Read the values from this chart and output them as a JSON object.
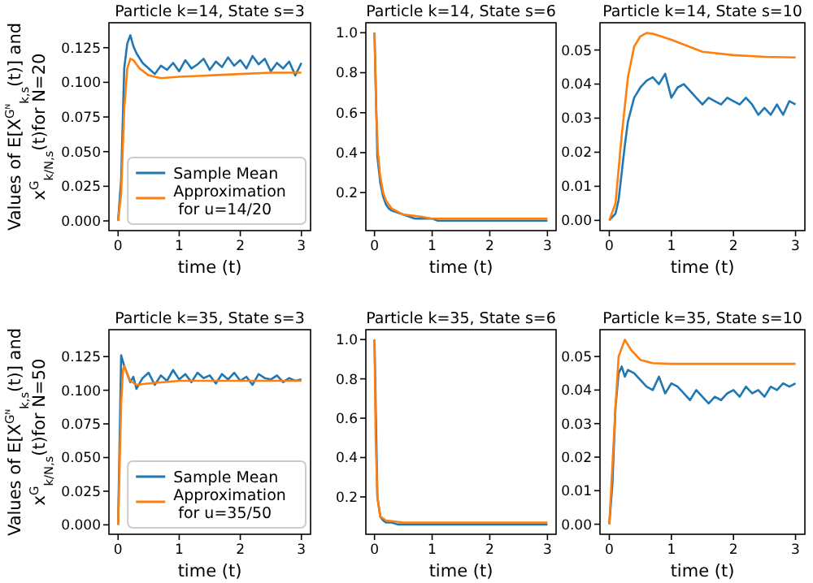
{
  "chart_data": [
    {
      "type": "line",
      "title": "Particle k=14, State s=3",
      "xlabel": "time (t)",
      "ylabel": "Values of E[X$^{Gᴺ}$$_{k,s}$(t)] and\nx$^{G}$$_{k/N,s}$(t)for N=20",
      "legend": "bottom right",
      "xlim": [
        -0.15,
        3.15
      ],
      "xticks": [
        0,
        1,
        2,
        3
      ],
      "ylim": [
        -0.007,
        0.143
      ],
      "yticks": [
        {
          "value": 0,
          "label": "0.000"
        },
        {
          "value": 0.025,
          "label": "0.025"
        },
        {
          "value": 0.05,
          "label": "0.050"
        },
        {
          "value": 0.075,
          "label": "0.075"
        },
        {
          "value": 0.1,
          "label": "0.100"
        },
        {
          "value": 0.125,
          "label": "0.125"
        }
      ],
      "x": [
        0,
        0.05,
        0.1,
        0.15,
        0.2,
        0.25,
        0.3,
        0.4,
        0.5,
        0.6,
        0.7,
        0.8,
        0.9,
        1,
        1.1,
        1.2,
        1.3,
        1.4,
        1.5,
        1.6,
        1.7,
        1.8,
        1.9,
        2,
        2.1,
        2.2,
        2.3,
        2.4,
        2.5,
        2.6,
        2.7,
        2.8,
        2.9,
        3
      ],
      "series": [
        {
          "name": "Sample Mean",
          "color": "#1f77b4",
          "values": [
            0,
            0.03,
            0.11,
            0.128,
            0.134,
            0.126,
            0.121,
            0.114,
            0.11,
            0.106,
            0.112,
            0.109,
            0.114,
            0.108,
            0.116,
            0.11,
            0.113,
            0.117,
            0.109,
            0.115,
            0.111,
            0.118,
            0.112,
            0.116,
            0.11,
            0.119,
            0.113,
            0.117,
            0.108,
            0.114,
            0.11,
            0.115,
            0.105,
            0.114
          ]
        },
        {
          "name": "Approximation\nfor u=14/20",
          "color": "#ff7f0e",
          "x": [
            0,
            0.05,
            0.1,
            0.15,
            0.2,
            0.25,
            0.35,
            0.5,
            0.7,
            1,
            1.5,
            2,
            2.5,
            3
          ],
          "values": [
            0,
            0.02,
            0.08,
            0.11,
            0.117,
            0.116,
            0.11,
            0.105,
            0.103,
            0.104,
            0.105,
            0.106,
            0.107,
            0.107
          ]
        }
      ]
    },
    {
      "type": "line",
      "title": "Particle k=14, State s=6",
      "xlabel": "time (t)",
      "xlim": [
        -0.15,
        3.15
      ],
      "xticks": [
        0,
        1,
        2,
        3
      ],
      "ylim": [
        0.01,
        1.05
      ],
      "yticks": [
        0.2,
        0.4,
        0.6,
        0.8,
        {
          "value": 1,
          "label": "1.0"
        }
      ],
      "x": [
        0,
        0.05,
        0.1,
        0.15,
        0.2,
        0.25,
        0.3,
        0.4,
        0.5,
        0.6,
        0.7,
        0.8,
        0.9,
        1,
        1.1,
        1.2,
        1.3,
        1.4,
        1.5,
        1.6,
        1.7,
        1.8,
        1.9,
        2,
        2.1,
        2.2,
        2.3,
        2.4,
        2.5,
        2.6,
        2.7,
        2.8,
        2.9,
        3
      ],
      "series": [
        {
          "color": "#1f77b4",
          "values": [
            1.0,
            0.38,
            0.25,
            0.18,
            0.14,
            0.12,
            0.11,
            0.1,
            0.09,
            0.08,
            0.07,
            0.07,
            0.07,
            0.07,
            0.06,
            0.06,
            0.06,
            0.06,
            0.06,
            0.06,
            0.06,
            0.06,
            0.06,
            0.06,
            0.06,
            0.06,
            0.06,
            0.06,
            0.06,
            0.06,
            0.06,
            0.06,
            0.06,
            0.06
          ]
        },
        {
          "color": "#ff7f0e",
          "x": [
            0,
            0.03,
            0.06,
            0.1,
            0.15,
            0.2,
            0.3,
            0.5,
            0.8,
            1,
            2,
            3
          ],
          "values": [
            1.0,
            0.6,
            0.4,
            0.28,
            0.2,
            0.16,
            0.12,
            0.09,
            0.08,
            0.07,
            0.07,
            0.07
          ]
        }
      ]
    },
    {
      "type": "line",
      "title": "Particle k=14, State s=10",
      "xlabel": "time (t)",
      "xlim": [
        -0.15,
        3.15
      ],
      "xticks": [
        0,
        1,
        2,
        3
      ],
      "ylim": [
        -0.003,
        0.058
      ],
      "yticks": [
        {
          "value": 0,
          "label": "0.00"
        },
        {
          "value": 0.01,
          "label": "0.01"
        },
        {
          "value": 0.02,
          "label": "0.02"
        },
        {
          "value": 0.03,
          "label": "0.03"
        },
        {
          "value": 0.04,
          "label": "0.04"
        },
        {
          "value": 0.05,
          "label": "0.05"
        }
      ],
      "x": [
        0,
        0.05,
        0.1,
        0.15,
        0.2,
        0.25,
        0.3,
        0.4,
        0.5,
        0.6,
        0.7,
        0.8,
        0.9,
        1,
        1.1,
        1.2,
        1.3,
        1.4,
        1.5,
        1.6,
        1.7,
        1.8,
        1.9,
        2,
        2.1,
        2.2,
        2.3,
        2.4,
        2.5,
        2.6,
        2.7,
        2.8,
        2.9,
        3
      ],
      "series": [
        {
          "color": "#1f77b4",
          "values": [
            0,
            0.001,
            0.002,
            0.006,
            0.014,
            0.022,
            0.029,
            0.036,
            0.039,
            0.041,
            0.042,
            0.04,
            0.043,
            0.036,
            0.039,
            0.04,
            0.038,
            0.036,
            0.034,
            0.036,
            0.035,
            0.034,
            0.036,
            0.035,
            0.034,
            0.036,
            0.034,
            0.031,
            0.033,
            0.031,
            0.034,
            0.031,
            0.035,
            0.034
          ]
        },
        {
          "color": "#ff7f0e",
          "x": [
            0,
            0.1,
            0.2,
            0.3,
            0.4,
            0.5,
            0.6,
            0.7,
            1,
            1.5,
            2,
            2.5,
            3
          ],
          "values": [
            0,
            0.005,
            0.025,
            0.042,
            0.051,
            0.054,
            0.055,
            0.0548,
            0.053,
            0.0495,
            0.0485,
            0.048,
            0.0478
          ]
        }
      ]
    },
    {
      "type": "line",
      "title": "Particle k=35, State s=3",
      "xlabel": "time (t)",
      "ylabel": "Values of E[X$^{Gᴺ}$$_{k,s}$(t)] and\nx$^{G}$$_{k/N,s}$(t)for N=50",
      "legend": "bottom right",
      "xlim": [
        -0.15,
        3.15
      ],
      "xticks": [
        0,
        1,
        2,
        3
      ],
      "ylim": [
        -0.007,
        0.145
      ],
      "yticks": [
        {
          "value": 0,
          "label": "0.000"
        },
        {
          "value": 0.025,
          "label": "0.025"
        },
        {
          "value": 0.05,
          "label": "0.050"
        },
        {
          "value": 0.075,
          "label": "0.075"
        },
        {
          "value": 0.1,
          "label": "0.100"
        },
        {
          "value": 0.125,
          "label": "0.125"
        }
      ],
      "x": [
        0,
        0.05,
        0.1,
        0.15,
        0.2,
        0.25,
        0.3,
        0.4,
        0.5,
        0.6,
        0.7,
        0.8,
        0.9,
        1,
        1.1,
        1.2,
        1.3,
        1.4,
        1.5,
        1.6,
        1.7,
        1.8,
        1.9,
        2,
        2.1,
        2.2,
        2.3,
        2.4,
        2.5,
        2.6,
        2.7,
        2.8,
        2.9,
        3
      ],
      "series": [
        {
          "name": "Sample Mean",
          "color": "#1f77b4",
          "values": [
            0,
            0.126,
            0.118,
            0.112,
            0.106,
            0.11,
            0.101,
            0.109,
            0.113,
            0.104,
            0.111,
            0.107,
            0.115,
            0.108,
            0.112,
            0.106,
            0.113,
            0.109,
            0.111,
            0.105,
            0.112,
            0.108,
            0.113,
            0.107,
            0.11,
            0.104,
            0.112,
            0.109,
            0.108,
            0.111,
            0.106,
            0.109,
            0.107,
            0.108
          ]
        },
        {
          "name": "Approximation\nfor u=35/50",
          "color": "#ff7f0e",
          "x": [
            0,
            0.05,
            0.08,
            0.1,
            0.15,
            0.2,
            0.3,
            0.5,
            1,
            3
          ],
          "values": [
            0,
            0.09,
            0.115,
            0.118,
            0.112,
            0.107,
            0.104,
            0.105,
            0.107,
            0.107
          ]
        }
      ]
    },
    {
      "type": "line",
      "title": "Particle k=35, State s=6",
      "xlabel": "time (t)",
      "xlim": [
        -0.15,
        3.15
      ],
      "xticks": [
        0,
        1,
        2,
        3
      ],
      "ylim": [
        0.01,
        1.05
      ],
      "yticks": [
        0.2,
        0.4,
        0.6,
        0.8,
        {
          "value": 1,
          "label": "1.0"
        }
      ],
      "x": [
        0,
        0.05,
        0.1,
        0.15,
        0.2,
        0.25,
        0.3,
        0.4,
        0.5,
        0.6,
        0.7,
        0.8,
        0.9,
        1,
        1.1,
        1.2,
        1.3,
        1.4,
        1.5,
        1.6,
        1.7,
        1.8,
        1.9,
        2,
        2.1,
        2.2,
        2.3,
        2.4,
        2.5,
        2.6,
        2.7,
        2.8,
        2.9,
        3
      ],
      "series": [
        {
          "color": "#1f77b4",
          "values": [
            1.0,
            0.2,
            0.1,
            0.08,
            0.07,
            0.07,
            0.07,
            0.06,
            0.06,
            0.06,
            0.06,
            0.06,
            0.06,
            0.06,
            0.06,
            0.06,
            0.06,
            0.06,
            0.06,
            0.06,
            0.06,
            0.06,
            0.06,
            0.06,
            0.06,
            0.06,
            0.06,
            0.06,
            0.06,
            0.06,
            0.06,
            0.06,
            0.06,
            0.06
          ]
        },
        {
          "color": "#ff7f0e",
          "x": [
            0,
            0.02,
            0.05,
            0.1,
            0.2,
            0.5,
            3
          ],
          "values": [
            1.0,
            0.5,
            0.2,
            0.1,
            0.08,
            0.07,
            0.07
          ]
        }
      ]
    },
    {
      "type": "line",
      "title": "Particle k=35, State s=10",
      "xlabel": "time (t)",
      "xlim": [
        -0.15,
        3.15
      ],
      "xticks": [
        0,
        1,
        2,
        3
      ],
      "ylim": [
        -0.003,
        0.058
      ],
      "yticks": [
        {
          "value": 0,
          "label": "0.00"
        },
        {
          "value": 0.01,
          "label": "0.01"
        },
        {
          "value": 0.02,
          "label": "0.02"
        },
        {
          "value": 0.03,
          "label": "0.03"
        },
        {
          "value": 0.04,
          "label": "0.04"
        },
        {
          "value": 0.05,
          "label": "0.05"
        }
      ],
      "x": [
        0,
        0.05,
        0.1,
        0.15,
        0.2,
        0.25,
        0.3,
        0.4,
        0.5,
        0.6,
        0.7,
        0.8,
        0.9,
        1,
        1.1,
        1.2,
        1.3,
        1.4,
        1.5,
        1.6,
        1.7,
        1.8,
        1.9,
        2,
        2.1,
        2.2,
        2.3,
        2.4,
        2.5,
        2.6,
        2.7,
        2.8,
        2.9,
        3
      ],
      "series": [
        {
          "color": "#1f77b4",
          "values": [
            0,
            0.012,
            0.035,
            0.045,
            0.047,
            0.044,
            0.046,
            0.045,
            0.043,
            0.041,
            0.04,
            0.044,
            0.039,
            0.042,
            0.041,
            0.039,
            0.037,
            0.04,
            0.038,
            0.036,
            0.038,
            0.037,
            0.039,
            0.04,
            0.038,
            0.041,
            0.039,
            0.04,
            0.038,
            0.041,
            0.04,
            0.042,
            0.041,
            0.042
          ]
        },
        {
          "color": "#ff7f0e",
          "x": [
            0,
            0.1,
            0.15,
            0.25,
            0.35,
            0.5,
            0.7,
            1,
            3
          ],
          "values": [
            0,
            0.035,
            0.05,
            0.055,
            0.052,
            0.049,
            0.048,
            0.0478,
            0.0478
          ]
        }
      ]
    }
  ]
}
